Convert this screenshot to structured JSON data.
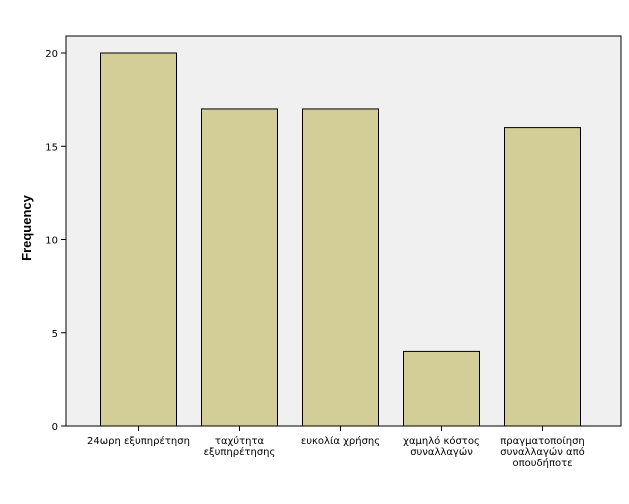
{
  "chart_data": {
    "type": "bar",
    "title": "",
    "xlabel": "",
    "ylabel": "Frequency",
    "ylim": [
      0,
      20
    ],
    "yticks": [
      0,
      5,
      10,
      15,
      20
    ],
    "grid": false,
    "categories": [
      [
        "24ωρη εξυπηρέτηση"
      ],
      [
        "ταχύτητα",
        "εξυπηρέτησης"
      ],
      [
        "ευκολία χρήσης"
      ],
      [
        "χαμηλό κόστος",
        "συναλλαγών"
      ],
      [
        "πραγματοποίηση",
        "συναλλαγών από",
        "οπουδήποτε"
      ]
    ],
    "values": [
      20,
      17,
      17,
      4,
      16
    ],
    "colors": {
      "bar_fill": "#d3ce97",
      "bar_stroke": "#000000",
      "plot_background": "#f0f0f0"
    }
  }
}
